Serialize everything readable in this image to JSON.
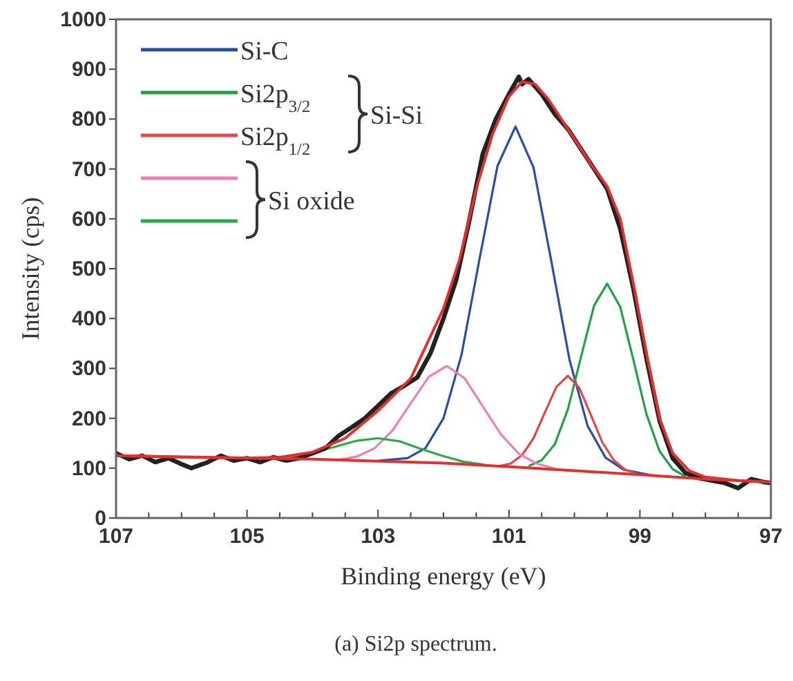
{
  "chart_data": {
    "type": "line",
    "xlabel": "Binding energy (eV)",
    "ylabel": "Intensity (cps)",
    "annotations": [
      "Si-Si",
      "Si oxide",
      "(a) Si2p spectrum."
    ],
    "xlim": [
      107,
      97
    ],
    "xticks": [
      107,
      {
        "value": 106.5,
        "label": null
      },
      {
        "value": 106,
        "label": null
      },
      {
        "value": 105.5,
        "label": null
      },
      105,
      {
        "value": 104.5,
        "label": null
      },
      {
        "value": 104,
        "label": null
      },
      {
        "value": 103.5,
        "label": null
      },
      103,
      {
        "value": 102.5,
        "label": null
      },
      {
        "value": 102,
        "label": null
      },
      {
        "value": 101.5,
        "label": null
      },
      101,
      {
        "value": 100.5,
        "label": null
      },
      {
        "value": 100,
        "label": null
      },
      {
        "value": 99.5,
        "label": null
      },
      99,
      {
        "value": 98.5,
        "label": null
      },
      {
        "value": 98,
        "label": null
      },
      {
        "value": 97.5,
        "label": null
      },
      97
    ],
    "ylim": [
      0,
      1000
    ],
    "yticks": [
      0,
      100,
      200,
      300,
      400,
      500,
      600,
      700,
      800,
      900,
      1000
    ],
    "grid": false,
    "legend": "top left",
    "marker": "none",
    "line_style": "solid",
    "series": [
      {
        "name": "Si-C",
        "color": "#2a4ea0",
        "x": [
          103,
          102.55,
          102.275,
          102,
          101.725,
          101.45,
          101.175,
          100.9,
          100.625,
          100.35,
          100.075,
          99.8,
          99.525,
          99.25,
          98.8
        ],
        "values": [
          115,
          120,
          140,
          200,
          327,
          519,
          706,
          785,
          703,
          513,
          317,
          185,
          121,
          97,
          85
        ]
      },
      {
        "name": "Si2p$_{3/2}$",
        "color": "#22a048",
        "x": [
          100.7,
          100.5,
          100.3,
          100.1,
          99.9,
          99.7,
          99.5,
          99.3,
          99.1,
          98.9,
          98.7,
          98.5,
          98.3
        ],
        "values": [
          104,
          116,
          148,
          218,
          323,
          426,
          470,
          423,
          317,
          208,
          134,
          98,
          83
        ]
      },
      {
        "name": "Si2p$_{1/2}$",
        "color": "#e04848",
        "x": [
          101.15,
          100.975,
          100.8,
          100.625,
          100.45,
          100.275,
          100.1,
          99.925,
          99.75,
          99.575,
          99.4,
          99.225,
          99.05
        ],
        "values": [
          104,
          109,
          126,
          160,
          212,
          263,
          285,
          261,
          207,
          152,
          116,
          97,
          89
        ]
      },
      {
        "color": "#ea80b8",
        "x": [
          103.6,
          103.325,
          103.05,
          102.775,
          102.5,
          102.225,
          101.95,
          101.675,
          101.4,
          101.125,
          100.85,
          100.575,
          100.3
        ],
        "values": [
          117,
          123,
          140,
          176,
          230,
          283,
          305,
          280,
          224,
          168,
          129,
          109,
          99
        ]
      },
      {
        "color": "#2ea844",
        "x": [
          105,
          104.625,
          104.3,
          103.975,
          103.65,
          103.325,
          103,
          102.675,
          102.35,
          102.025,
          101.7,
          101.375
        ],
        "values": [
          120,
          121,
          124,
          132,
          143,
          155,
          160,
          154,
          139,
          125,
          113,
          107
        ]
      },
      {
        "color": "#222222",
        "x": [
          107,
          106.8,
          106.6,
          106.4,
          106.2,
          106,
          105.85,
          105.6,
          105.4,
          105.2,
          105,
          104.8,
          104.6,
          104.4,
          104.2,
          104,
          103.8,
          103.6,
          103.4,
          103.2,
          103,
          102.8,
          102.6,
          102.4,
          102.2,
          102,
          101.8,
          101.6,
          101.4,
          101.2,
          101,
          100.85,
          100.8,
          100.7,
          100.5,
          100.3,
          100.1,
          99.9,
          99.7,
          99.5,
          99.3,
          99.1,
          98.9,
          98.7,
          98.5,
          98.3,
          98.1,
          97.9,
          97.7,
          97.5,
          97.3,
          97.1,
          97
        ],
        "values": [
          130,
          118,
          125,
          112,
          120,
          108,
          100,
          112,
          125,
          115,
          120,
          112,
          122,
          115,
          120,
          130,
          140,
          165,
          182,
          200,
          225,
          250,
          265,
          282,
          330,
          400,
          480,
          600,
          730,
          800,
          850,
          885,
          870,
          880,
          850,
          810,
          780,
          740,
          700,
          660,
          580,
          460,
          320,
          195,
          120,
          90,
          80,
          75,
          70,
          60,
          78,
          72,
          70
        ]
      },
      {
        "color": "#e03030",
        "x": [
          107,
          106,
          105,
          104.5,
          104,
          103.5,
          103,
          102.5,
          102,
          101.75,
          101.5,
          101.25,
          101,
          100.8,
          100.6,
          100.4,
          100.2,
          100,
          99.75,
          99.5,
          99.3,
          99.1,
          98.9,
          98.7,
          98.5,
          98.25,
          98,
          97.5,
          97
        ],
        "values": [
          125,
          122,
          120,
          122,
          132,
          160,
          215,
          280,
          420,
          520,
          660,
          770,
          845,
          875,
          870,
          840,
          800,
          760,
          710,
          665,
          600,
          470,
          330,
          200,
          130,
          95,
          82,
          75,
          72
        ]
      },
      {
        "color": "#e03030",
        "x": [
          107,
          104,
          102,
          101,
          100,
          99,
          98,
          97
        ],
        "values": [
          125,
          118,
          110,
          103,
          95,
          87,
          78,
          72
        ]
      }
    ]
  }
}
